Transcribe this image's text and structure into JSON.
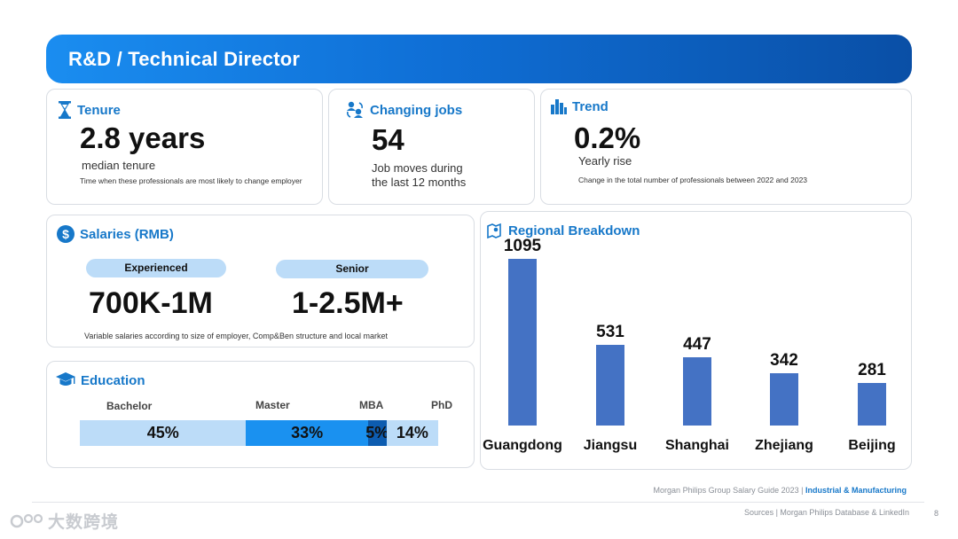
{
  "banner": {
    "title": "R&D / Technical Director"
  },
  "tenure": {
    "label": "Tenure",
    "value": "2.8 years",
    "caption": "median tenure",
    "note": "Time when these professionals are most likely to  change employer"
  },
  "changing_jobs": {
    "label": "Changing jobs",
    "value": "54",
    "caption_line1": "Job moves during",
    "caption_line2": "the last 12 months"
  },
  "trend": {
    "label": "Trend",
    "value": "0.2%",
    "caption": "Yearly rise",
    "note": "Change in the total number of professionals between 2022 and 2023"
  },
  "salaries": {
    "label": "Salaries (RMB)",
    "experienced_label": "Experienced",
    "experienced_value": "700K-1M",
    "senior_label": "Senior",
    "senior_value": "1-2.5M+",
    "note": "Variable salaries according to size of employer, Comp&Ben structure and local market"
  },
  "education": {
    "label": "Education",
    "segments": [
      {
        "name": "Bachelor",
        "percent": 45,
        "value": "45%",
        "color": "#bcdcf8"
      },
      {
        "name": "Master",
        "percent": 33,
        "value": "33%",
        "color": "#1a91f0"
      },
      {
        "name": "MBA",
        "percent": 5,
        "value": "5%",
        "color": "#0d5cb0"
      },
      {
        "name": "PhD",
        "percent": 14,
        "value": "14%",
        "color": "#bcdcf8"
      }
    ]
  },
  "chart_data": {
    "type": "bar",
    "title": "Regional Breakdown",
    "categories": [
      "Guangdong",
      "Jiangsu",
      "Shanghai",
      "Zhejiang",
      "Beijing"
    ],
    "values": [
      1095,
      531,
      447,
      342,
      281
    ],
    "value_labels": [
      "1095",
      "531",
      "447",
      "342",
      "281"
    ],
    "xlabel": "",
    "ylabel": "",
    "ylim": [
      0,
      1095
    ],
    "bar_color": "#4472c4",
    "grid": false
  },
  "footer": {
    "guide": "Morgan Philips Group Salary Guide 2023 | ",
    "sector": "Industrial & Manufacturing",
    "sources": "Sources | Morgan Philips Database & LinkedIn",
    "page": "8",
    "watermark": "大数跨境"
  },
  "colors": {
    "accent": "#1778c9",
    "banner_start": "#1a8df0",
    "banner_end": "#0a4fa6"
  }
}
